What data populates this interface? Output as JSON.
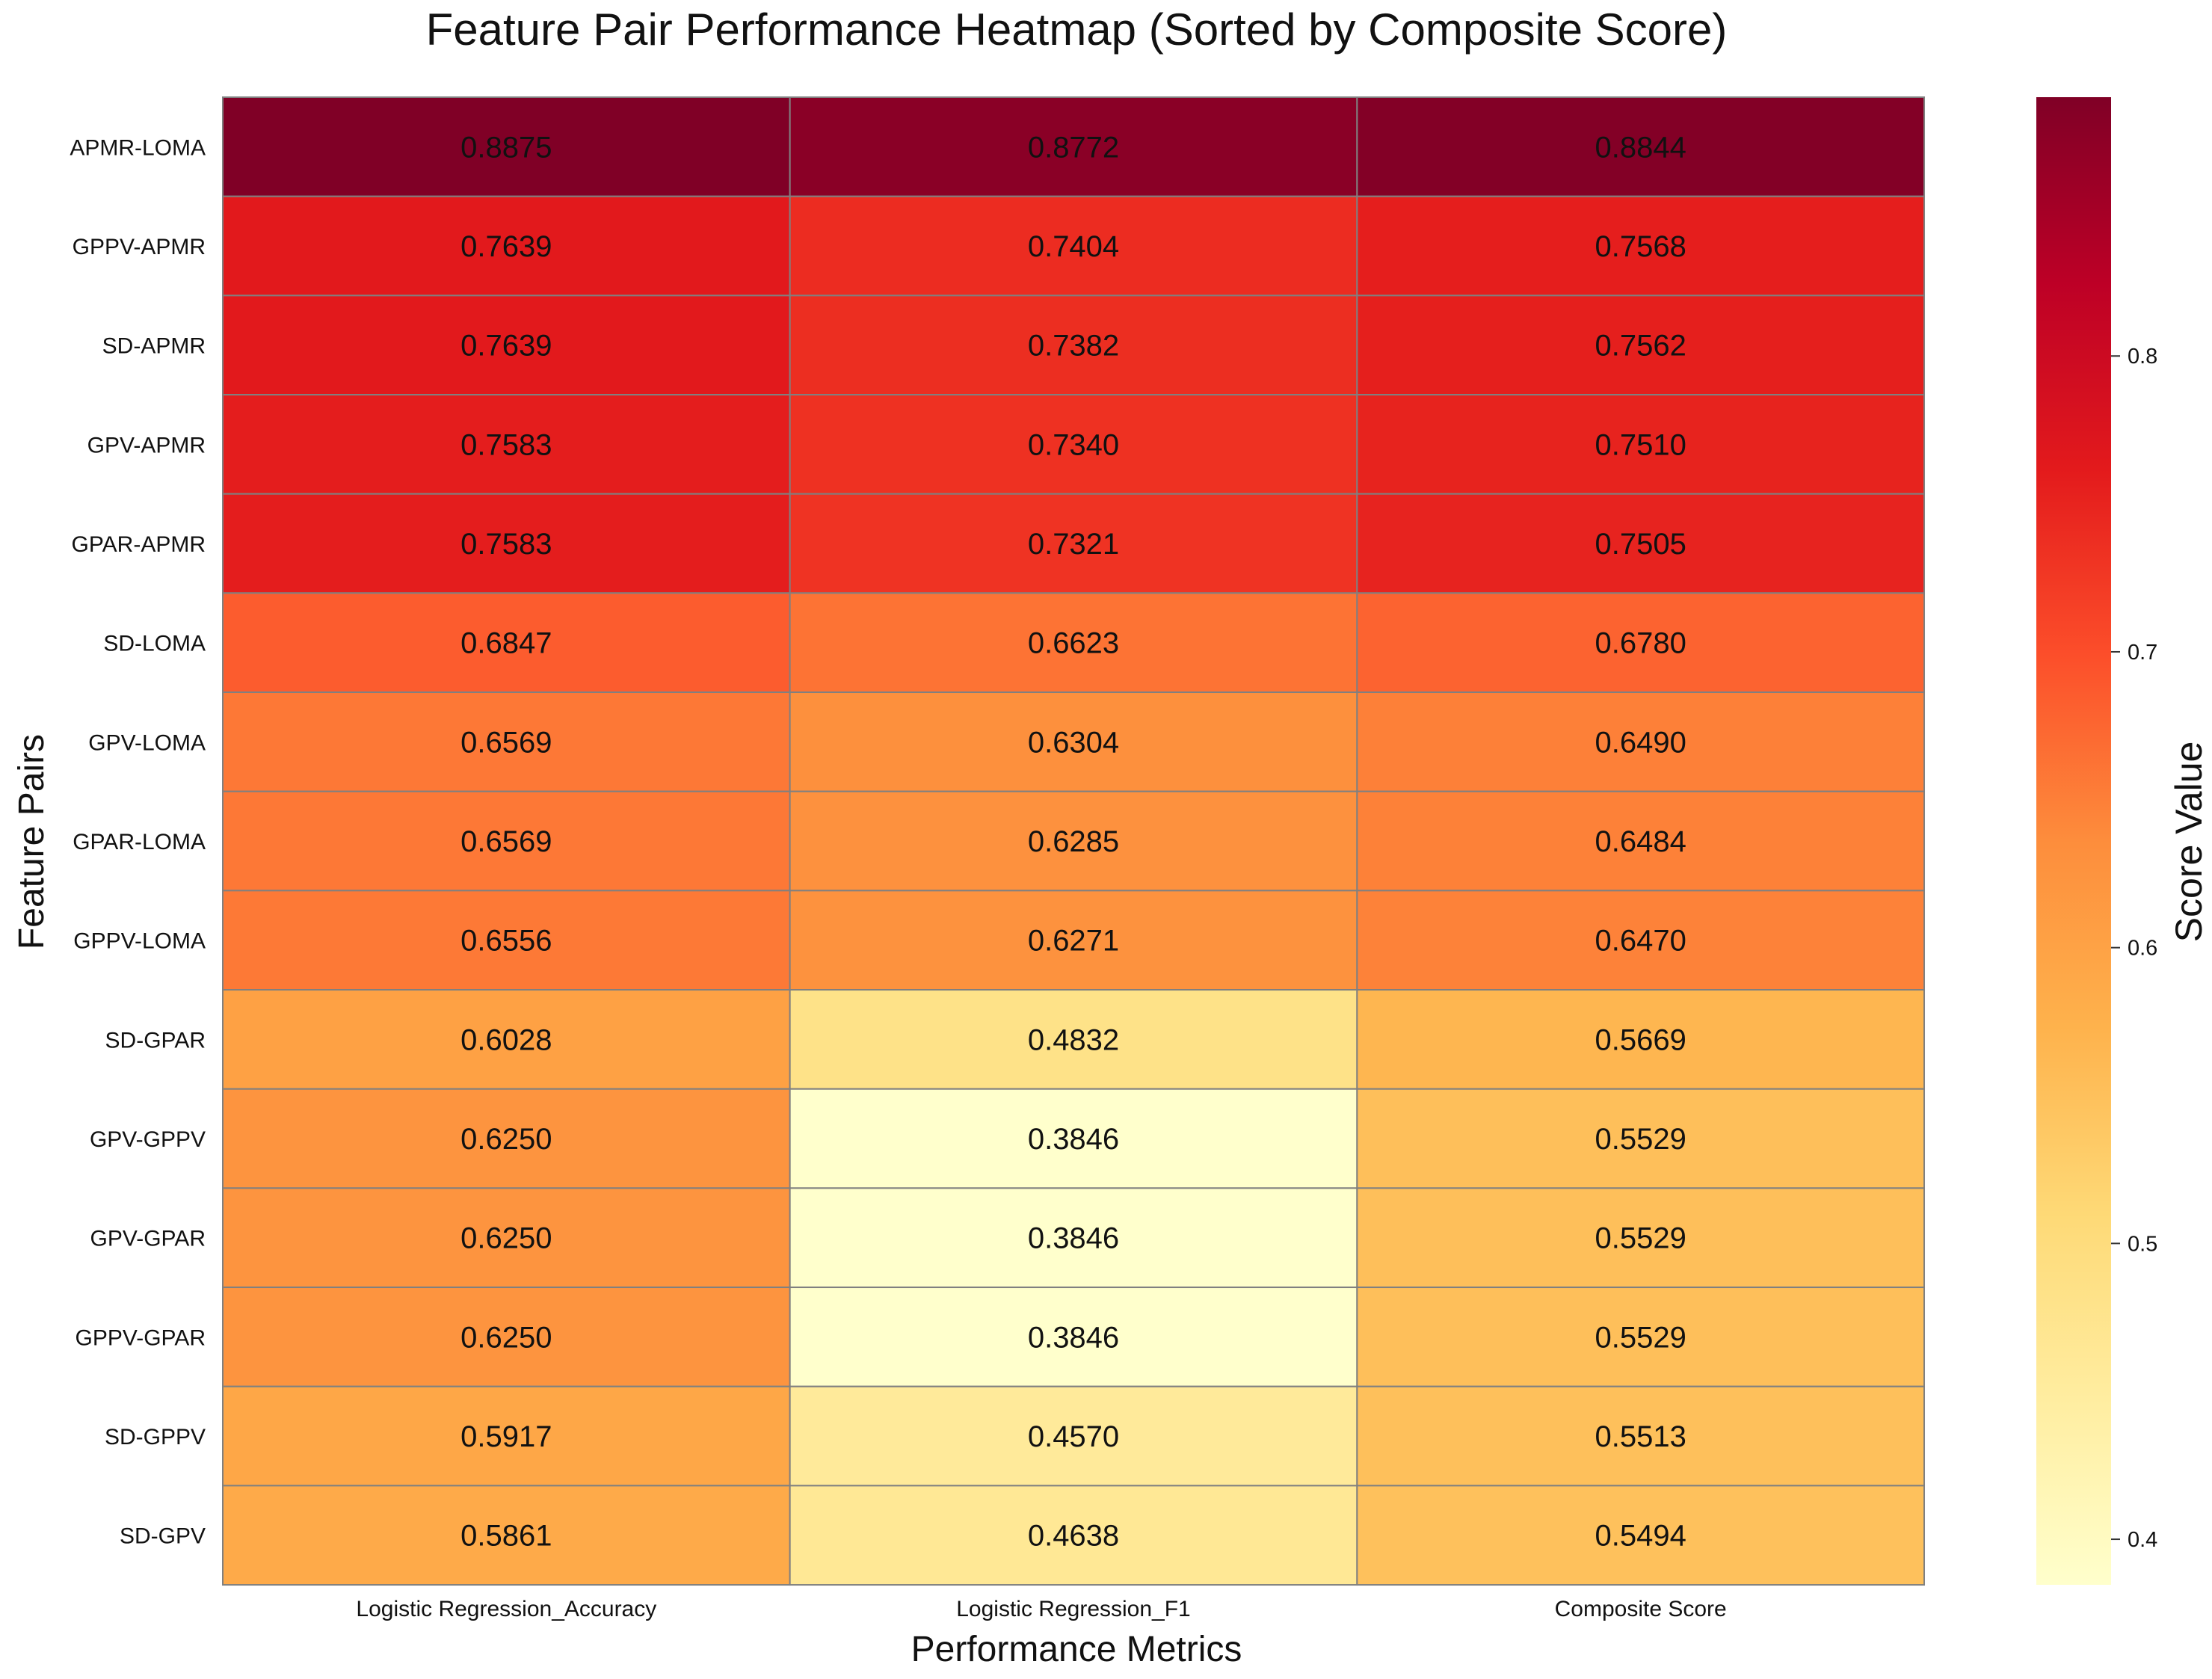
{
  "chart_data": {
    "type": "heatmap",
    "title": "Feature Pair Performance Heatmap (Sorted by Composite Score)",
    "xlabel": "Performance Metrics",
    "ylabel": "Feature Pairs",
    "columns": [
      "Logistic Regression_Accuracy",
      "Logistic Regression_F1",
      "Composite Score"
    ],
    "rows": [
      {
        "label": "APMR-LOMA",
        "values": [
          "0.8875",
          "0.8772",
          "0.8844"
        ]
      },
      {
        "label": "GPPV-APMR",
        "values": [
          "0.7639",
          "0.7404",
          "0.7568"
        ]
      },
      {
        "label": "SD-APMR",
        "values": [
          "0.7639",
          "0.7382",
          "0.7562"
        ]
      },
      {
        "label": "GPV-APMR",
        "values": [
          "0.7583",
          "0.7340",
          "0.7510"
        ]
      },
      {
        "label": "GPAR-APMR",
        "values": [
          "0.7583",
          "0.7321",
          "0.7505"
        ]
      },
      {
        "label": "SD-LOMA",
        "values": [
          "0.6847",
          "0.6623",
          "0.6780"
        ]
      },
      {
        "label": "GPV-LOMA",
        "values": [
          "0.6569",
          "0.6304",
          "0.6490"
        ]
      },
      {
        "label": "GPAR-LOMA",
        "values": [
          "0.6569",
          "0.6285",
          "0.6484"
        ]
      },
      {
        "label": "GPPV-LOMA",
        "values": [
          "0.6556",
          "0.6271",
          "0.6470"
        ]
      },
      {
        "label": "SD-GPAR",
        "values": [
          "0.6028",
          "0.4832",
          "0.5669"
        ]
      },
      {
        "label": "GPV-GPPV",
        "values": [
          "0.6250",
          "0.3846",
          "0.5529"
        ]
      },
      {
        "label": "GPV-GPAR",
        "values": [
          "0.6250",
          "0.3846",
          "0.5529"
        ]
      },
      {
        "label": "GPPV-GPAR",
        "values": [
          "0.6250",
          "0.3846",
          "0.5529"
        ]
      },
      {
        "label": "SD-GPPV",
        "values": [
          "0.5917",
          "0.4570",
          "0.5513"
        ]
      },
      {
        "label": "SD-GPV",
        "values": [
          "0.5861",
          "0.4638",
          "0.5494"
        ]
      }
    ],
    "colorbar": {
      "label": "Score Value",
      "range": [
        0.3846,
        0.8875
      ],
      "ticks": [
        "0.4",
        "0.5",
        "0.6",
        "0.7",
        "0.8"
      ],
      "colormap": "YlOrRd",
      "stops": [
        "#ffffcc",
        "#ffeda0",
        "#fed976",
        "#feb24c",
        "#fd8d3c",
        "#fc4e2a",
        "#e31a1c",
        "#bd0026",
        "#800026"
      ]
    },
    "cell_border_color": "#808080"
  }
}
